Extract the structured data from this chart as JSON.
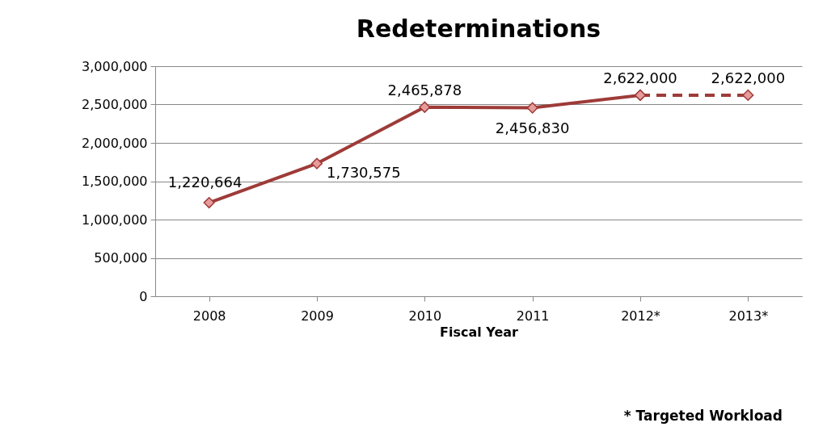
{
  "chart_data": {
    "type": "line",
    "title": "Redeterminations",
    "xlabel": "Fiscal Year",
    "categories": [
      "2008",
      "2009",
      "2010",
      "2011",
      "2012*",
      "2013*"
    ],
    "series": [
      {
        "color": "#9e3b38",
        "values": [
          1220664,
          1730575,
          2465878,
          2456830,
          2622000,
          null
        ],
        "value_labels": [
          "1,220,664",
          "1,730,575",
          "2,465,878",
          "2,456,830",
          "2,622,000",
          null
        ]
      },
      {
        "color": "#9e3b38",
        "line_style": "dashed",
        "values": [
          null,
          null,
          null,
          null,
          2622000,
          2622000
        ],
        "value_labels": [
          null,
          null,
          null,
          null,
          null,
          "2,622,000"
        ]
      }
    ],
    "ylim": [
      0,
      3000000
    ],
    "yticks": [
      0,
      {
        "value": 500000,
        "label": "500,000"
      },
      {
        "value": 1000000,
        "label": "1,000,000"
      },
      {
        "value": 1500000,
        "label": "1,500,000"
      },
      {
        "value": 2000000,
        "label": "2,000,000"
      },
      {
        "value": 2500000,
        "label": "2,500,000"
      },
      {
        "value": 3000000,
        "label": "3,000,000"
      }
    ],
    "grid": "y",
    "marker": "diamond",
    "annotations": [
      "* Targeted Workload"
    ]
  }
}
